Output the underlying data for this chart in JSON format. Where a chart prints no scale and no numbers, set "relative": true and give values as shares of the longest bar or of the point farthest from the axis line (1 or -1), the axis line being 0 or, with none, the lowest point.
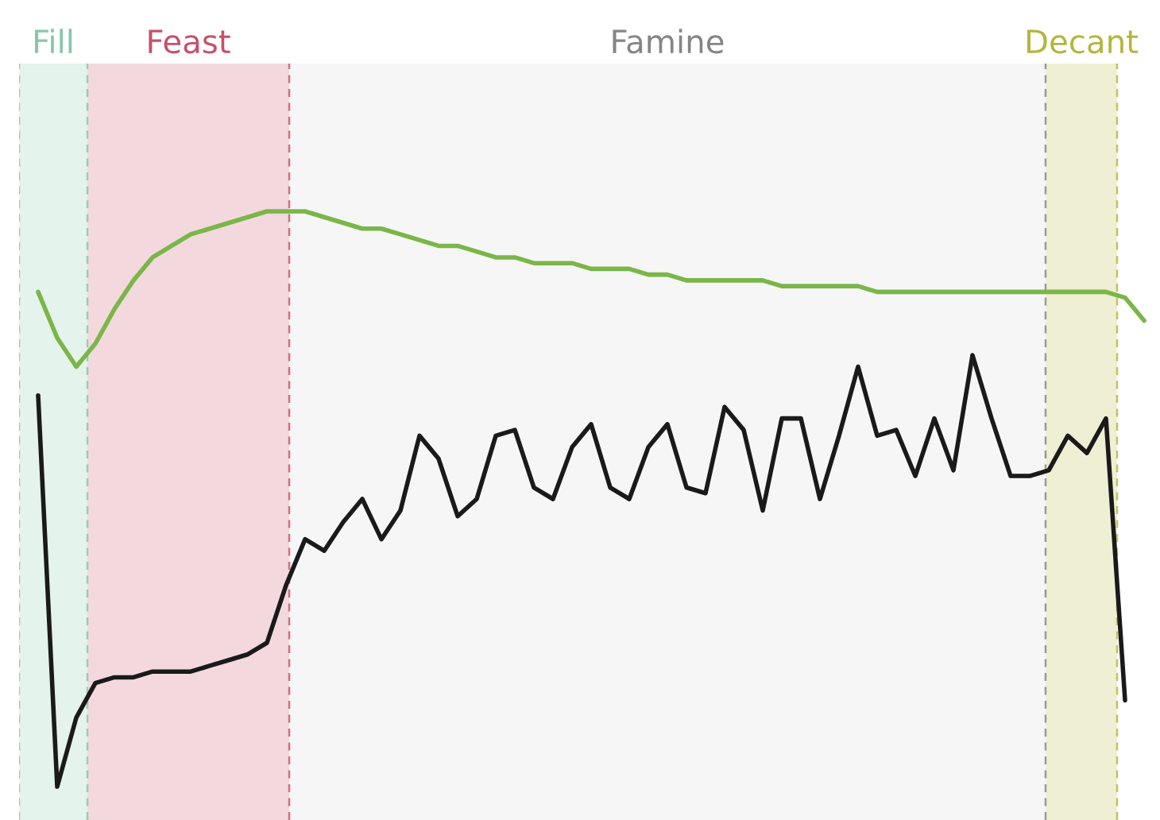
{
  "chart_data": {
    "type": "line",
    "relative": true,
    "marker": "none",
    "line_style": "solid",
    "annotations": [
      "Fill",
      "Feast",
      "Famine",
      "Decant"
    ],
    "categories": [
      null,
      null,
      null,
      null,
      null,
      null,
      null,
      null,
      null,
      null,
      null,
      null,
      null,
      null,
      null,
      null,
      null,
      null,
      null,
      null,
      null,
      null,
      null,
      null,
      null,
      null,
      null,
      null,
      null,
      null,
      null,
      null,
      null,
      null,
      null,
      null,
      null,
      null,
      null,
      null,
      null,
      null,
      null,
      null,
      null,
      null,
      null,
      null,
      null,
      null,
      null,
      null,
      null,
      null,
      null,
      null,
      null,
      null,
      null,
      null
    ],
    "series": [
      {
        "color": "#7ab648",
        "values": [
          null,
          0.86,
          0.78,
          0.73,
          0.77,
          0.83,
          0.88,
          0.92,
          0.94,
          0.96,
          0.97,
          0.98,
          0.99,
          1.0,
          1.0,
          1.0,
          0.99,
          0.98,
          0.97,
          0.97,
          0.96,
          0.95,
          0.94,
          0.94,
          0.93,
          0.92,
          0.92,
          0.91,
          0.91,
          0.91,
          0.9,
          0.9,
          0.9,
          0.89,
          0.89,
          0.88,
          0.88,
          0.88,
          0.88,
          0.88,
          0.87,
          0.87,
          0.87,
          0.87,
          0.87,
          0.86,
          0.86,
          0.86,
          0.86,
          0.86,
          0.86,
          0.86,
          0.86,
          0.86,
          0.86,
          0.86,
          0.86,
          0.86,
          0.85,
          0.81
        ]
      },
      {
        "color": "#1a1a1a",
        "values": [
          null,
          0.68,
          0,
          0.12,
          0.18,
          0.19,
          0.19,
          0.2,
          0.2,
          0.2,
          0.21,
          0.22,
          0.23,
          0.25,
          0.35,
          0.43,
          0.41,
          0.46,
          0.5,
          0.43,
          0.48,
          0.61,
          0.57,
          0.47,
          0.5,
          0.61,
          0.62,
          0.52,
          0.5,
          0.59,
          0.63,
          0.52,
          0.5,
          0.59,
          0.63,
          0.52,
          0.51,
          0.66,
          0.62,
          0.48,
          0.64,
          0.64,
          0.5,
          0.61,
          0.73,
          0.61,
          0.62,
          0.54,
          0.64,
          0.55,
          0.75,
          0.64,
          0.54,
          0.54,
          0.55,
          0.61,
          0.58,
          0.64,
          0.15,
          null
        ]
      }
    ]
  }
}
